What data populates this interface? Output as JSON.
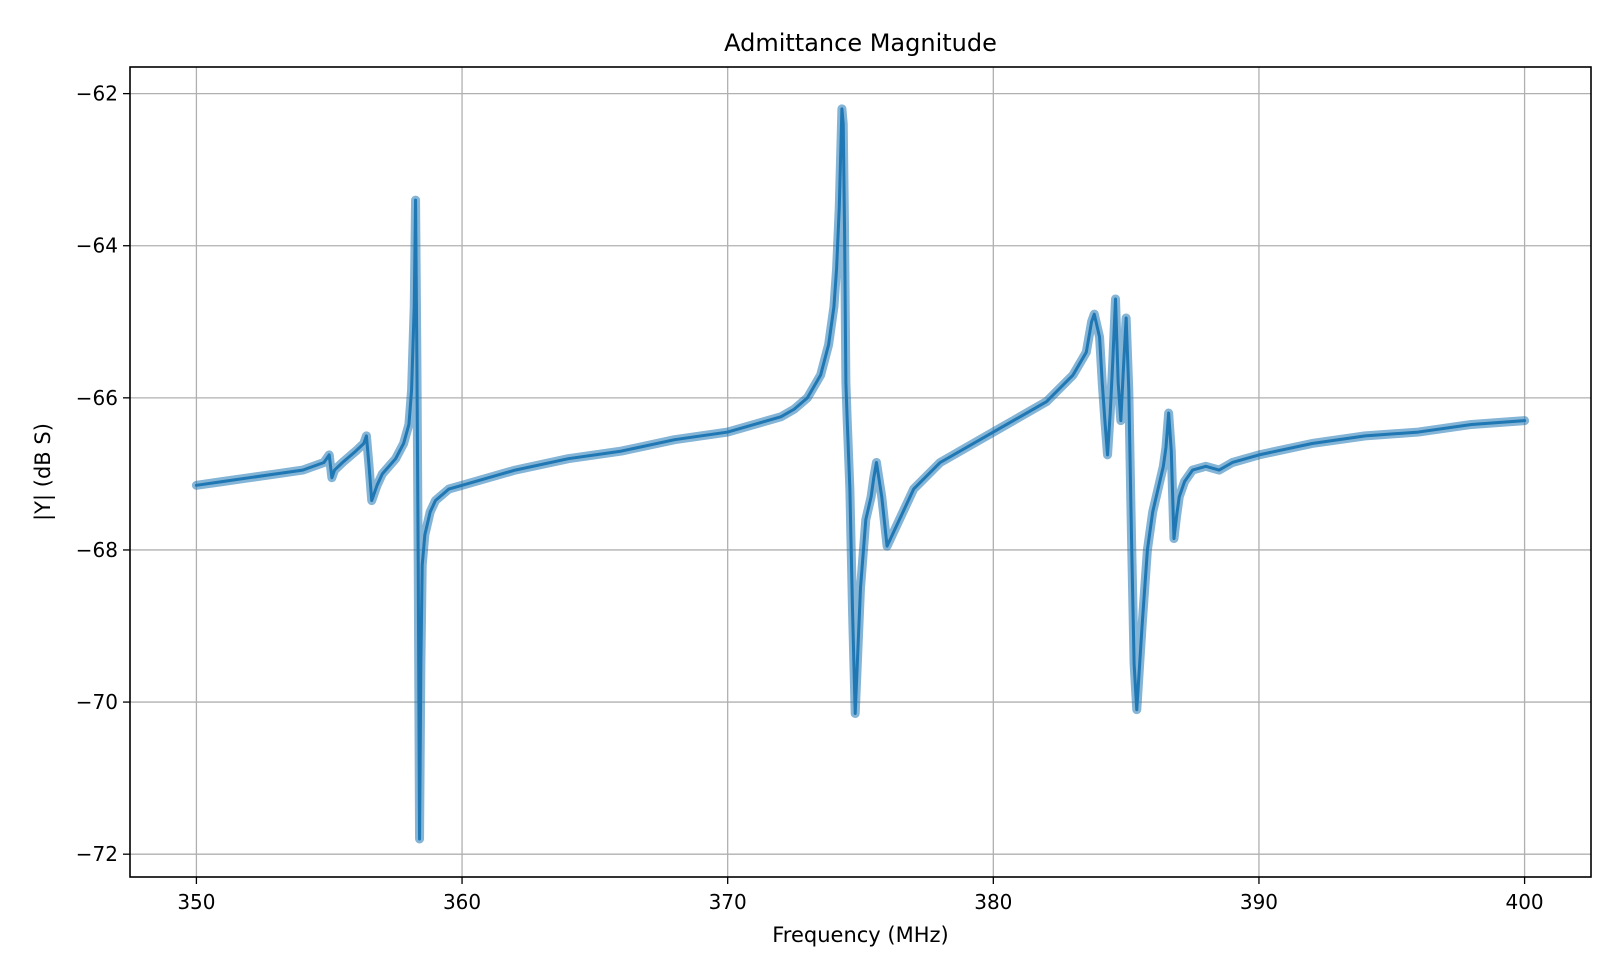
{
  "chart_data": {
    "type": "line",
    "title": "Admittance Magnitude",
    "xlabel": "Frequency (MHz)",
    "ylabel": "|Y| (dB S)",
    "xlim": [
      347.5,
      402.5
    ],
    "ylim": [
      -72.3,
      -61.65
    ],
    "xticks": [
      350,
      360,
      370,
      380,
      390,
      400
    ],
    "yticks": [
      -62,
      -64,
      -66,
      -68,
      -70,
      -72
    ],
    "xtick_labels": [
      "350",
      "360",
      "370",
      "380",
      "390",
      "400"
    ],
    "ytick_labels": [
      "−62",
      "−64",
      "−66",
      "−68",
      "−70",
      "−72"
    ],
    "grid": true,
    "series": [
      {
        "color": "#1f77b4",
        "x": [
          350.0,
          351.0,
          352.0,
          353.0,
          354.0,
          354.8,
          355.0,
          355.1,
          355.2,
          355.5,
          356.0,
          356.3,
          356.4,
          356.5,
          356.6,
          356.8,
          357.0,
          357.5,
          357.8,
          358.0,
          358.1,
          358.2,
          358.25,
          358.3,
          358.35,
          358.4,
          358.45,
          358.5,
          358.6,
          358.8,
          359.0,
          359.5,
          360.0,
          361.0,
          362.0,
          364.0,
          366.0,
          368.0,
          370.0,
          371.0,
          372.0,
          372.5,
          373.0,
          373.5,
          373.8,
          374.0,
          374.1,
          374.2,
          374.3,
          374.35,
          374.4,
          374.45,
          374.5,
          374.6,
          374.7,
          374.8,
          375.0,
          375.2,
          375.4,
          375.5,
          375.6,
          375.8,
          376.0,
          377.0,
          378.0,
          380.0,
          382.0,
          383.0,
          383.5,
          383.7,
          383.8,
          384.0,
          384.1,
          384.2,
          384.3,
          384.4,
          384.5,
          384.6,
          384.7,
          384.8,
          384.9,
          385.0,
          385.1,
          385.2,
          385.3,
          385.4,
          385.6,
          385.8,
          386.0,
          386.2,
          386.4,
          386.5,
          386.6,
          386.7,
          386.8,
          386.9,
          387.0,
          387.2,
          387.5,
          388.0,
          388.5,
          389.0,
          390.0,
          392.0,
          394.0,
          396.0,
          398.0,
          400.0
        ],
        "y": [
          -67.15,
          -67.1,
          -67.05,
          -67.0,
          -66.95,
          -66.85,
          -66.75,
          -67.05,
          -66.95,
          -66.85,
          -66.7,
          -66.6,
          -66.5,
          -66.9,
          -67.35,
          -67.15,
          -67.0,
          -66.8,
          -66.6,
          -66.35,
          -65.9,
          -64.8,
          -63.4,
          -65.5,
          -68.2,
          -71.8,
          -69.5,
          -68.2,
          -67.8,
          -67.5,
          -67.35,
          -67.2,
          -67.15,
          -67.05,
          -66.95,
          -66.8,
          -66.7,
          -66.55,
          -66.45,
          -66.35,
          -66.25,
          -66.15,
          -66.0,
          -65.7,
          -65.3,
          -64.8,
          -64.3,
          -63.5,
          -62.2,
          -62.4,
          -63.8,
          -65.8,
          -66.3,
          -67.2,
          -68.8,
          -70.15,
          -68.5,
          -67.6,
          -67.3,
          -67.05,
          -66.85,
          -67.3,
          -67.95,
          -67.2,
          -66.85,
          -66.45,
          -66.05,
          -65.7,
          -65.4,
          -65.0,
          -64.9,
          -65.2,
          -65.8,
          -66.3,
          -66.75,
          -66.2,
          -65.5,
          -64.7,
          -65.8,
          -66.3,
          -65.6,
          -64.95,
          -65.9,
          -67.8,
          -69.5,
          -70.1,
          -69.0,
          -68.0,
          -67.5,
          -67.2,
          -66.9,
          -66.65,
          -66.2,
          -66.7,
          -67.85,
          -67.55,
          -67.3,
          -67.1,
          -66.95,
          -66.9,
          -66.95,
          -66.85,
          -66.75,
          -66.6,
          -66.5,
          -66.45,
          -66.35,
          -66.3
        ]
      }
    ]
  }
}
